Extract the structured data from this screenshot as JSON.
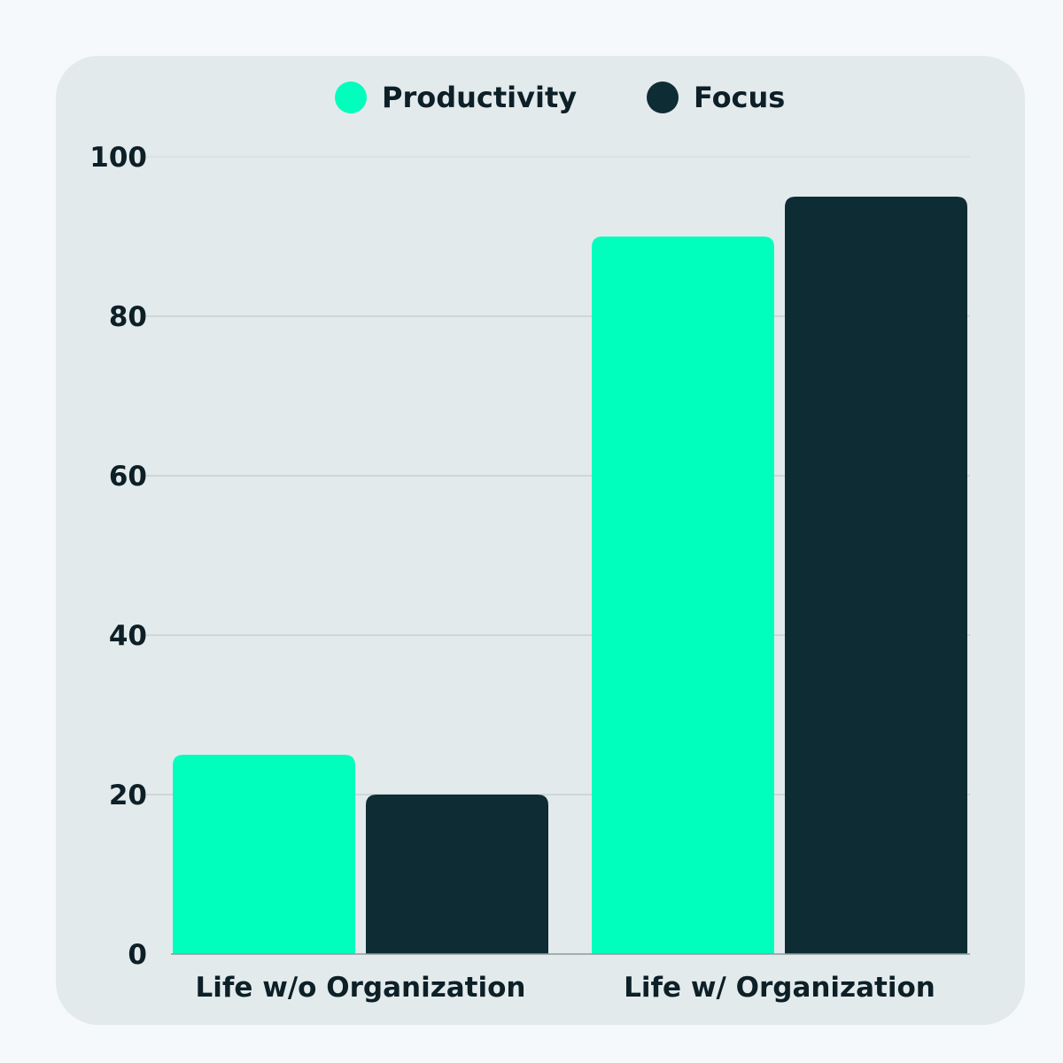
{
  "colors": {
    "background": "#f5f9fc",
    "card": "#e3eaec",
    "grid": "#b9c2c4",
    "text": "#0d1f27"
  },
  "legend": {
    "items": [
      {
        "label": "Productivity",
        "color": "#00ffbd"
      },
      {
        "label": "Focus",
        "color": "#0e2c34"
      }
    ]
  },
  "chart_data": {
    "type": "bar",
    "title": "",
    "xlabel": "",
    "ylabel": "",
    "categories": [
      "Life w/o Organization",
      "Life w/ Organization"
    ],
    "series": [
      {
        "name": "Productivity",
        "values": [
          25,
          90
        ],
        "color": "#00ffbd"
      },
      {
        "name": "Focus",
        "values": [
          20,
          95
        ],
        "color": "#0e2c34"
      }
    ],
    "ylim": [
      0,
      100
    ],
    "yticks": [
      0,
      20,
      40,
      60,
      80,
      100
    ],
    "grid": true,
    "legend_position": "top-center"
  }
}
